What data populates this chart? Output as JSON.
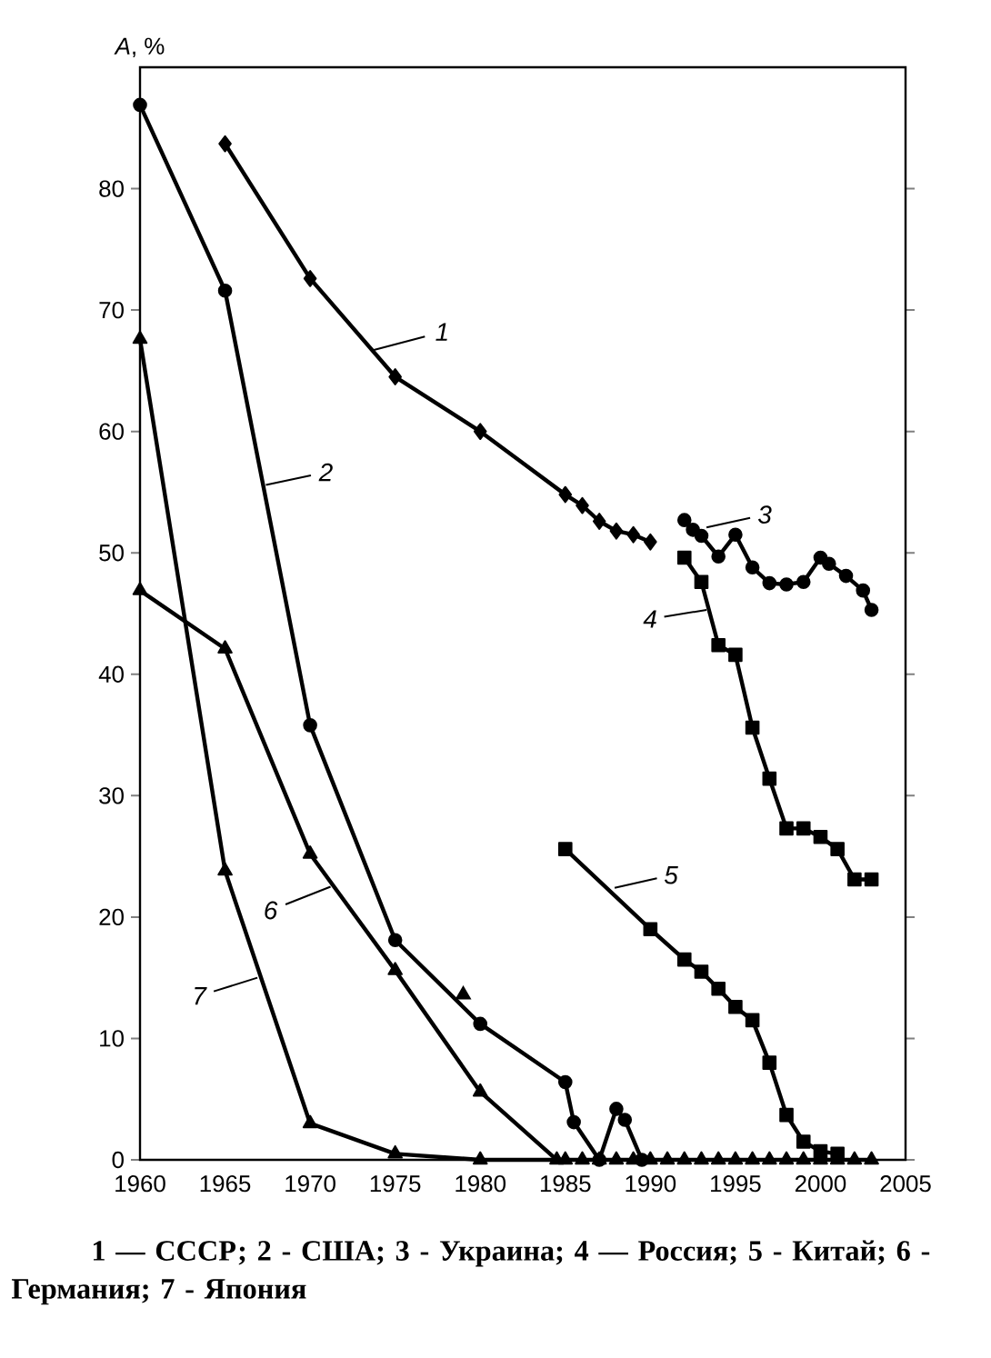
{
  "chart_data": {
    "type": "line",
    "ylabel": "*A*, %",
    "xlim": [
      1960,
      2005
    ],
    "ylim": [
      0,
      90
    ],
    "xticks": [
      1960,
      1965,
      1970,
      1975,
      1980,
      1985,
      1990,
      1995,
      2000,
      2005
    ],
    "yticks": [
      0,
      10,
      20,
      30,
      40,
      50,
      60,
      70,
      80
    ],
    "line_style": "solid",
    "series": [
      {
        "color": "#000000",
        "marker": "diamond",
        "x": [
          1965,
          1970,
          1975,
          1980,
          1985,
          1986,
          1987,
          1988,
          1989,
          1990
        ],
        "values": [
          83.7,
          72.6,
          64.5,
          60.0,
          54.8,
          53.9,
          52.6,
          51.8,
          51.5,
          50.9
        ]
      },
      {
        "color": "#000000",
        "marker": "circle",
        "x": [
          1960,
          1965,
          1970,
          1975,
          1980,
          1985,
          1985.5,
          1987,
          1988,
          1988.5,
          1989.5
        ],
        "values": [
          86.9,
          71.6,
          35.8,
          18.1,
          11.2,
          6.4,
          3.1,
          0,
          4.2,
          3.3,
          0
        ]
      },
      {
        "color": "#000000",
        "marker": "circle",
        "x": [
          1992,
          1992.5,
          1993,
          1994,
          1995,
          1996,
          1997,
          1998,
          1999,
          2000,
          2000.5,
          2001.5,
          2002.5,
          2003
        ],
        "values": [
          52.7,
          51.9,
          51.4,
          49.7,
          51.5,
          48.8,
          47.5,
          47.4,
          47.6,
          49.6,
          49.1,
          48.1,
          46.9,
          45.3
        ]
      },
      {
        "color": "#000000",
        "marker": "square",
        "x": [
          1992,
          1993,
          1994,
          1995,
          1996,
          1997,
          1998,
          1999,
          2000,
          2001,
          2002,
          2003
        ],
        "values": [
          49.6,
          47.6,
          42.4,
          41.6,
          35.6,
          31.4,
          27.3,
          27.3,
          26.6,
          25.6,
          23.1,
          23.1
        ]
      },
      {
        "color": "#000000",
        "marker": "square",
        "x": [
          1985,
          1990,
          1992,
          1993,
          1994,
          1995,
          1996,
          1997,
          1998,
          1999,
          2000,
          2001
        ],
        "values": [
          25.6,
          19.0,
          16.5,
          15.5,
          14.1,
          12.6,
          11.5,
          8.0,
          3.7,
          1.5,
          0.7,
          0.5
        ]
      },
      {
        "color": "#000000",
        "marker": "triangle",
        "x": [
          1960,
          1965,
          1970,
          1975,
          1980,
          1984.5
        ],
        "values": [
          46.9,
          42.1,
          25.2,
          15.6,
          5.6,
          0
        ]
      },
      {
        "color": "#000000",
        "marker": "triangle",
        "x": [
          1960,
          1965,
          1970,
          1975,
          1980,
          1985,
          1986,
          1987,
          1988,
          1989,
          1990,
          1991,
          1992,
          1993,
          1994,
          1995,
          1996,
          1997,
          1998,
          1999,
          2000,
          2001,
          2002,
          2003
        ],
        "values": [
          67.6,
          23.8,
          3.0,
          0.5,
          0,
          0,
          0,
          0,
          0,
          0,
          0,
          0,
          0,
          0,
          0,
          0,
          0,
          0,
          0,
          0,
          0,
          0,
          0,
          0
        ]
      },
      {
        "type": "scatter",
        "color": "#000000",
        "marker": "triangle",
        "x": [
          1979
        ],
        "values": [
          13.6
        ]
      }
    ],
    "annotations": [
      {
        "text": "1",
        "x": 1973.7,
        "y": 66.7
      },
      {
        "text": "2",
        "x": 1967.4,
        "y": 55.6
      },
      {
        "text": "3",
        "x": 1993.3,
        "y": 52.1
      },
      {
        "text": "4",
        "x": 1993.3,
        "y": 45.3
      },
      {
        "text": "5",
        "x": 1987.9,
        "y": 22.4
      },
      {
        "text": "6",
        "x": 1971.2,
        "y": 22.5
      },
      {
        "text": "7",
        "x": 1966.9,
        "y": 15.0
      },
      "1 — СССР; 2 - США; 3 - Украина; 4 — Россия; 5 - Китай; 6 - Германия; 7 - Япония"
    ]
  }
}
